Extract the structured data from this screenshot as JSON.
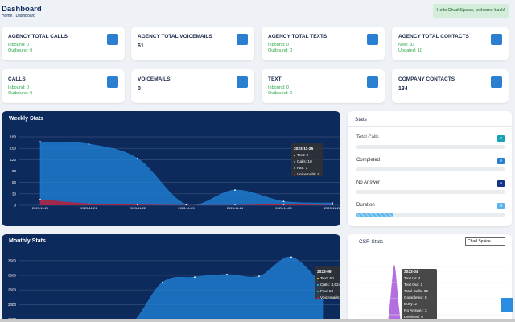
{
  "header": {
    "title": "Dashboard",
    "breadcrumb": "Home / Dashboard",
    "welcome": "Hello Chad Spaice, welcome back!"
  },
  "cards": [
    {
      "title": "AGENCY TOTAL CALLS",
      "lines": [
        "Inbound: 0",
        "Outbound: 0"
      ]
    },
    {
      "title": "AGENCY TOTAL VOICEMAILS",
      "value": 61
    },
    {
      "title": "AGENCY TOTAL TEXTS",
      "lines": [
        "Inbound: 0",
        "Outbound: 0"
      ]
    },
    {
      "title": "AGENCY TOTAL CONTACTS",
      "lines": [
        "New: 93",
        "Updated: 10"
      ]
    },
    {
      "title": "CALLS",
      "lines": [
        "Inbound: 0",
        "Outbound: 0"
      ]
    },
    {
      "title": "VOICEMAILS",
      "value": 0
    },
    {
      "title": "TEXT",
      "lines": [
        "Inbound: 0",
        "Outbound: 0"
      ]
    },
    {
      "title": "COMPANY CONTACTS",
      "value": 134
    }
  ],
  "weekly_stats": {
    "title": "Weekly Stats",
    "chart_data": {
      "type": "area",
      "categories": [
        "2023-11-20",
        "2023-11-21",
        "2023-11-22",
        "2023-11-23",
        "2023-11-24",
        "2023-11-25",
        "2023-11-26"
      ],
      "series": [
        {
          "color": "#1f7fd4",
          "values": [
            167,
            161,
            123,
            2,
            40,
            10,
            6
          ]
        },
        {
          "color": "#b3203c",
          "values": [
            15,
            4,
            1,
            0,
            0,
            2,
            0
          ]
        }
      ],
      "ylim": [
        0,
        180
      ],
      "yticks": [
        0,
        30,
        60,
        90,
        120,
        150,
        180
      ],
      "tooltip": [
        "2023-11-25",
        "Text: 2",
        "Calls: 10",
        "Fax: 1",
        "Voicemails: 0"
      ]
    }
  },
  "stats": {
    "title": "Stats",
    "rows": [
      {
        "label": "Total Calls",
        "value": 0
      },
      {
        "label": "Completed",
        "value": 0
      },
      {
        "label": "No Answer",
        "value": 0
      },
      {
        "label": "Duration",
        "value": 0
      }
    ]
  },
  "monthly_stats": {
    "title": "Monthly Stats",
    "chart_data": {
      "type": "area",
      "categories": [
        null,
        null,
        null,
        null,
        null,
        null,
        null,
        null,
        "2023-09",
        null
      ],
      "series": [
        {
          "color": "#1f7fd4",
          "values": [
            1200,
            1200,
            1200,
            1300,
            2760,
            2940,
            3030,
            2970,
            3624,
            2600
          ]
        }
      ],
      "ylim": [
        1400,
        3800
      ],
      "yticks": [
        1500,
        2000,
        2500,
        3000,
        3500
      ],
      "tooltip": [
        "2023-09",
        "Text: 50",
        "Calls: 3,624",
        "Fax: 13",
        "Voicemails: 100"
      ]
    }
  },
  "csr_stats": {
    "title": "CSR Stats",
    "selected": "Chad Spaice",
    "tooltip": [
      "2023-04",
      "Text IN: 4",
      "Text Out: 2",
      "Total Calls: 32",
      "Completed: 8",
      "Busy: 2",
      "No Answer: 3",
      "Declined: 0"
    ]
  }
}
